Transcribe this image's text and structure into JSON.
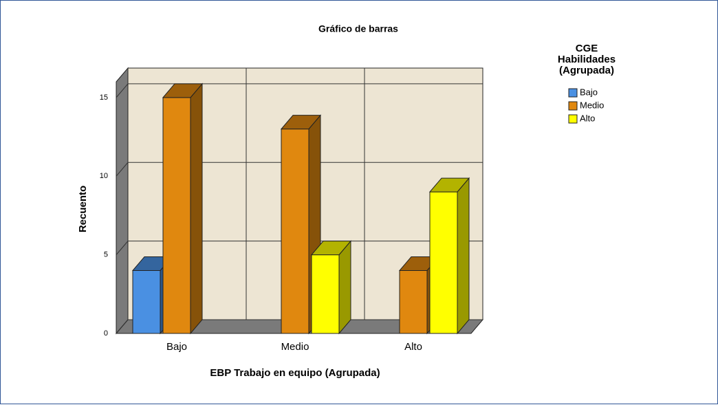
{
  "chart_data": {
    "type": "bar3d",
    "title": "Gráfico de barras",
    "x_label": "EBP Trabajo en equipo (Agrupada)",
    "y_label": "Recuento",
    "legend_title": [
      "CGE",
      "Habilidades",
      "(Agrupada)"
    ],
    "categories": [
      "Bajo",
      "Medio",
      "Alto"
    ],
    "series": [
      {
        "name": "Bajo",
        "color": "#4a90e2",
        "values": [
          4,
          null,
          null
        ]
      },
      {
        "name": "Medio",
        "color": "#e0880f",
        "values": [
          15,
          13,
          4
        ]
      },
      {
        "name": "Alto",
        "color": "#ffff00",
        "values": [
          null,
          5,
          9
        ]
      }
    ],
    "ylim": [
      0,
      16
    ],
    "yticks": [
      0,
      5,
      10,
      15
    ],
    "grid": true
  }
}
